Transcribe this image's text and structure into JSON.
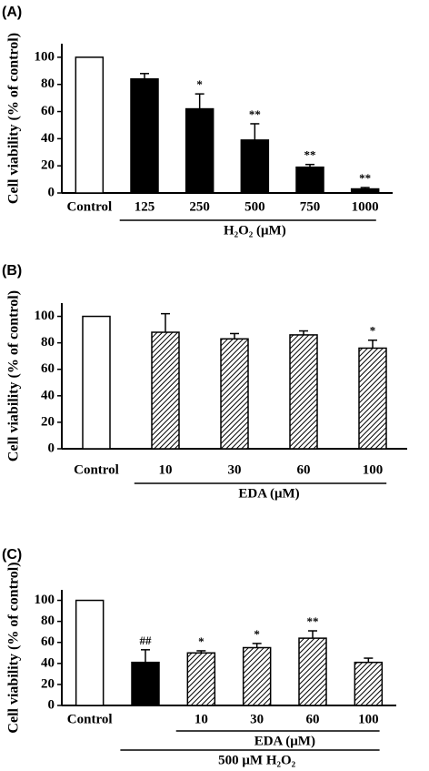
{
  "chart_data": [
    {
      "type": "bar",
      "panel_label": "(A)",
      "ylabel": "Cell viability (% of control)",
      "categories": [
        "Control",
        "125",
        "250",
        "500",
        "750",
        "1000"
      ],
      "values": [
        100,
        84,
        62,
        39,
        19,
        3
      ],
      "errors": [
        0,
        4,
        11,
        12,
        2,
        1
      ],
      "significance": [
        null,
        null,
        "*",
        "**",
        "**",
        "**"
      ],
      "patterns": [
        "open",
        "solid",
        "solid",
        "solid",
        "solid",
        "solid"
      ],
      "groups": [
        {
          "label": "H₂O₂ (μM)"
        }
      ],
      "ylim": [
        0,
        110
      ],
      "yticks": [
        0,
        20,
        40,
        60,
        80,
        100
      ]
    },
    {
      "type": "bar",
      "panel_label": "(B)",
      "ylabel": "Cell viability (% of control)",
      "categories": [
        "Control",
        "10",
        "30",
        "60",
        "100"
      ],
      "values": [
        100,
        88,
        83,
        86,
        76
      ],
      "errors": [
        0,
        14,
        4,
        3,
        6
      ],
      "significance": [
        null,
        null,
        null,
        null,
        "*"
      ],
      "patterns": [
        "open",
        "hatched",
        "hatched",
        "hatched",
        "hatched"
      ],
      "groups": [
        {
          "label": "EDA (μM)"
        }
      ],
      "ylim": [
        0,
        110
      ],
      "yticks": [
        0,
        20,
        40,
        60,
        80,
        100
      ]
    },
    {
      "type": "bar",
      "panel_label": "(C)",
      "ylabel": "Cell viability (% of control)",
      "categories": [
        "Control",
        null,
        "10",
        "30",
        "60",
        "100"
      ],
      "values": [
        100,
        41,
        50,
        55,
        64,
        41
      ],
      "errors": [
        0,
        12,
        2,
        4,
        7,
        4
      ],
      "significance": [
        null,
        "##",
        "*",
        "*",
        "**",
        null
      ],
      "patterns": [
        "open",
        "solid",
        "hatched",
        "hatched",
        "hatched",
        "hatched"
      ],
      "groups": [
        {
          "label": "EDA (μM)"
        },
        {
          "label": "500 μM  H₂O₂"
        }
      ],
      "ylim": [
        0,
        110
      ],
      "yticks": [
        0,
        20,
        40,
        60,
        80,
        100
      ]
    }
  ]
}
